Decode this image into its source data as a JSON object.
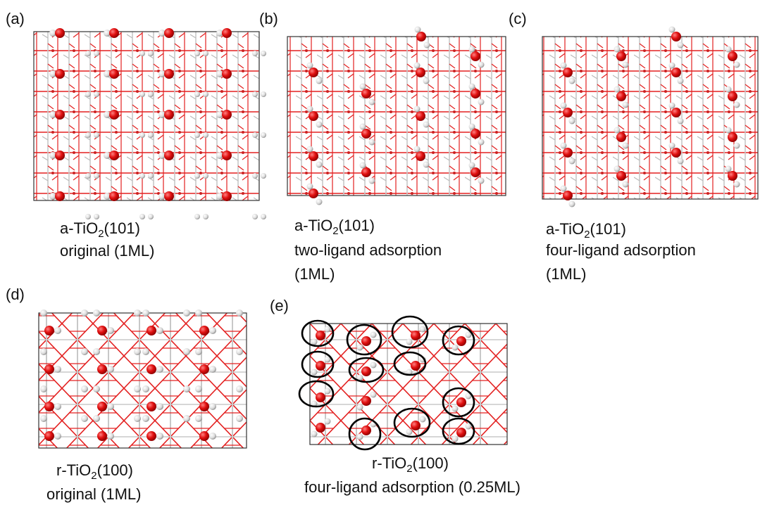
{
  "panels": [
    {
      "label": "(a)",
      "material": {
        "text": "a-TiO",
        "sub": "2",
        "after": "(101)"
      },
      "lines": [
        "original (1ML)"
      ]
    },
    {
      "label": "(b)",
      "material": {
        "text": "a-TiO",
        "sub": "2",
        "after": "(101)"
      },
      "lines": [
        "two-ligand adsorption",
        "(1ML)"
      ]
    },
    {
      "label": "(c)",
      "material": {
        "text": "a-TiO",
        "sub": "2",
        "after": "(101)"
      },
      "lines": [
        "four-ligand adsorption",
        "(1ML)"
      ]
    },
    {
      "label": "(d)",
      "material": {
        "text": "r-TiO",
        "sub": "2",
        "after": "(100)"
      },
      "lines": [
        "original (1ML)"
      ]
    },
    {
      "label": "(e)",
      "material": {
        "text": "r-TiO",
        "sub": "2",
        "after": "(100)"
      },
      "lines": [
        "four-ligand adsorption (0.25ML)"
      ]
    }
  ]
}
